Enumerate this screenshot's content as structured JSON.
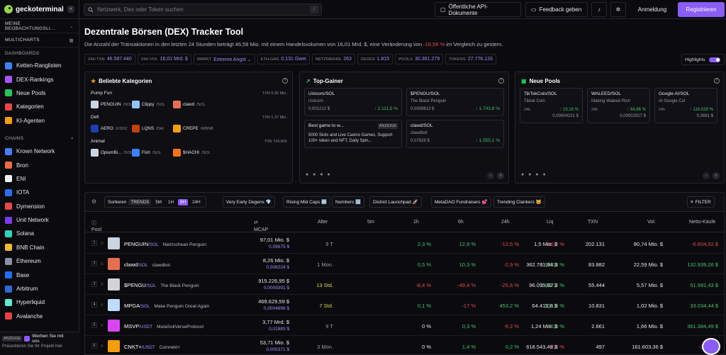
{
  "header": {
    "logo_text": "geckoterminal",
    "search_placeholder": "Netzwerk, Dex oder Token suchen",
    "search_shortcut": "/",
    "api_docs": "Öffentliche API-Dokumente",
    "feedback": "Feedback geben",
    "login": "Anmeldung",
    "register": "Registrieren"
  },
  "sidebar": {
    "watchlist": "MEINE BEOBACHTUNGSLI...",
    "multicharts": "MULTICHARTS",
    "dashboards_head": "DASHBOARDS",
    "dashboards": [
      {
        "label": "Ketten-Ranglisten",
        "color": "#3b82f6"
      },
      {
        "label": "DEX-Rankings",
        "color": "#a855f7"
      },
      {
        "label": "Neue Pools",
        "color": "#22c55e"
      },
      {
        "label": "Kategorien",
        "color": "#ef4444"
      },
      {
        "label": "KI-Agenten",
        "color": "#f59e0b"
      }
    ],
    "chains_head": "CHAINS",
    "chains": [
      {
        "label": "Krown Network",
        "color": "#4a7bff"
      },
      {
        "label": "Bron",
        "color": "#ef6c3a"
      },
      {
        "label": "ENI",
        "color": "#f1f1f1"
      },
      {
        "label": "IOTA",
        "color": "#2a6ef0"
      },
      {
        "label": "Dymension",
        "color": "#e5484d"
      },
      {
        "label": "Unit Network",
        "color": "#7c3aed"
      },
      {
        "label": "Solana",
        "color": "#2dd4bf"
      },
      {
        "label": "BNB Chain",
        "color": "#f3ba2f"
      },
      {
        "label": "Ethereum",
        "color": "#8b8fa8"
      },
      {
        "label": "Base",
        "color": "#1f6fff"
      },
      {
        "label": "Arbitrum",
        "color": "#2d6ad6"
      },
      {
        "label": "Hyperliquid",
        "color": "#5eead4"
      },
      {
        "label": "Avalanche",
        "color": "#e84142"
      }
    ],
    "ad_tag": "ANZEIGE",
    "ad_text": "Werben Sie mit uns",
    "ad_sub": "Präsentieren Sie Ihr Projekt hier"
  },
  "page": {
    "title": "Dezentrale Börsen (DEX) Tracker Tool",
    "subtitle_a": "Die Anzahl der Transaktionen in den letzten 24 Stunden beträgt 46,59 Mio. mit einem Handelsvolumen von 16,01 Mrd. $, eine Veränderung von",
    "subtitle_change": "-16,56 %",
    "subtitle_b": "im Vergleich zu gestern.",
    "highlights": "Highlights"
  },
  "stats": [
    {
      "label": "24H TXN",
      "value": "46.587.440"
    },
    {
      "label": "24H VOL",
      "value": "16,01 Mrd. $"
    },
    {
      "label": "MARKT",
      "value": "Extreme Angst ⌄"
    },
    {
      "label": "ETH-GAS",
      "value": "0,131 Gwei"
    },
    {
      "label": "NETZWERKE",
      "value": "263"
    },
    {
      "label": "DEXES",
      "value": "1.815"
    },
    {
      "label": "POOLS",
      "value": "30.361.279"
    },
    {
      "label": "TOKENS",
      "value": "27.776.133"
    }
  ],
  "categories_card": {
    "title": "Beliebte Kategorien",
    "groups": [
      {
        "name": "Pump Fun",
        "txn": "TXN 6,05 Mio.",
        "items": [
          {
            "name": "PENGUIN",
            "sym": "/SOL",
            "color": "#cbd5e1"
          },
          {
            "name": "Clippy",
            "sym": "/SOL",
            "color": "#93c5fd"
          },
          {
            "name": "clawd",
            "sym": "/SOL",
            "color": "#e76f51"
          }
        ]
      },
      {
        "name": "Defi",
        "txn": "TXN 1,37 Mio.",
        "items": [
          {
            "name": "AERO",
            "sym": "/USDC",
            "color": "#1e40af"
          },
          {
            "name": "LQNS",
            "sym": "/DAI",
            "color": "#c2410c"
          },
          {
            "name": "CREPE",
            "sym": "/WBNB",
            "color": "#f59e0b"
          }
        ]
      },
      {
        "name": "Animal",
        "txn": "TXN 734.805",
        "items": [
          {
            "name": "OpiumBi...",
            "sym": "/SOL",
            "color": "#cbd5e1"
          },
          {
            "name": "Fish",
            "sym": "/SOL",
            "color": "#3b82f6"
          },
          {
            "name": "$HACHI",
            "sym": "/SOL",
            "color": "#f97316"
          }
        ]
      }
    ]
  },
  "gainers_card": {
    "title": "Top-Gainer",
    "items": [
      {
        "pair": "Unicorn/SOL",
        "name": "Unicorn",
        "price": "0,001212 $",
        "change": "↑ 2.111,5 %"
      },
      {
        "pair": "$PENGU/SOL",
        "name": "The Black Penguin",
        "price": "0,0009813 $",
        "change": "↑ 1.743,8 %"
      },
      {
        "pair": "Best game to w...",
        "tag": "ANZEIGE",
        "desc": "5000 Slots and Live Casino Games, Support 100+ token and NFT, Daily Spin..."
      },
      {
        "pair": "clawd/SOL",
        "name": "clawdbot",
        "price": "0,07828 $",
        "change": "↑ 1.555,1 %"
      }
    ]
  },
  "pools_card": {
    "title": "Neue Pools",
    "items": [
      {
        "pair": "TikTokCoin/SOL",
        "name": "Tiktok Coin",
        "age": "24h",
        "change": "↑ 19,16 %",
        "price": "0,00004221 $"
      },
      {
        "pair": "WALEED/SOL",
        "name": "Making Waleed Rich",
        "age": "24h",
        "change": "↑ 84,86 %",
        "price": "0,00002927 $"
      },
      {
        "pair": "Google AI/SOL",
        "name": "AI Google Coi",
        "age": "24h",
        "change": "↑ 116.029 %",
        "price": "0,3661 $"
      }
    ]
  },
  "filters": {
    "sort": "Sortieren",
    "trends": "TRENDS",
    "tf": [
      "5M",
      "1H",
      "6H",
      "24H"
    ],
    "pills": [
      "Very Early Degens 💎",
      "Rising Mid Caps 🆙",
      "Numbers 🔢",
      "District Launchpad 🚀",
      "MetaDAO Fundraisers 💕",
      "Trending Clankers 🐱"
    ],
    "filter": "FILTER"
  },
  "table": {
    "headers": {
      "pool": "Pool",
      "mcap": "MCAP",
      "age": "Alter",
      "m5": "5m",
      "h1": "1h",
      "h6": "6h",
      "h24": "24h",
      "liq": "Liq",
      "txn": "TXN",
      "vol": "Vol.",
      "net": "Netto-Käufe"
    },
    "rows": [
      {
        "rank": "1",
        "sym": "PENGUIN",
        "quote": "/SOL",
        "name": "Nietzschean Penguin",
        "mcap": "97,01 Mio. $",
        "price": "0,09675 $",
        "age": "9 T",
        "m5": "2,3 %",
        "h1": "12,9 %",
        "h6": "-12,5 %",
        "h24": "-26,2 %",
        "liq": "1,5 Mio. $",
        "txn": "202.131",
        "vol": "80,74 Mio. $",
        "net": "-6.604,32 $",
        "color": "#cbd5e1"
      },
      {
        "rank": "2",
        "sym": "clawd",
        "quote": "/SOL",
        "name": "clawdbot",
        "mcap": "8,26 Mio. $",
        "price": "0,008224 $",
        "age": "1 Mon.",
        "m5": "0,5 %",
        "h1": "10,3 %",
        "h6": "-2,9 %",
        "h24": "1.933,3 %",
        "liq": "362.781,94 $",
        "txn": "83.882",
        "vol": "22,59 Mio. $",
        "net": "132.939,26 $",
        "color": "#e76f51"
      },
      {
        "rank": "3",
        "sym": "$PENGU",
        "quote": "/SOL",
        "name": "The Black Penguin",
        "mcap": "915.226,95 $",
        "price": "0,0009391 $",
        "age": "13 Std.",
        "m5": "-8,4 %",
        "h1": "-49,4 %",
        "h6": "-25,6 %",
        "h24": "1.637,2 %",
        "liq": "96.095,82 $",
        "txn": "55.444",
        "vol": "5,57 Mio. $",
        "net": "51.991,43 $",
        "color": "#d4d4d8"
      },
      {
        "rank": "4",
        "sym": "MPGA",
        "quote": "/SOL",
        "name": "Make Penguin Great Again",
        "mcap": "469.629,59 $",
        "price": "0,0004696 $",
        "age": "7 Std.",
        "m5": "0,1 %",
        "h1": "-17 %",
        "h6": "453,2 %",
        "h24": "531,6 %",
        "liq": "64.412,8 $",
        "txn": "10.831",
        "vol": "1,02 Mio. $",
        "net": "33.034,44 $",
        "color": "#bfdbfe"
      },
      {
        "rank": "5",
        "sym": "MSVP",
        "quote": "/USDT",
        "name": "MetaSoilVerseProtocol",
        "mcap": "3,77 Mrd. $",
        "price": "0,01883 $",
        "age": "9 T",
        "m5": "0 %",
        "h1": "0,3 %",
        "h6": "-9,2 %",
        "h24": "76,6 %",
        "liq": "1,24 Mio. $",
        "txn": "2.661",
        "vol": "1,66 Mio. $",
        "net": "361.384,49 $",
        "color": "#d946ef"
      },
      {
        "rank": "6",
        "sym": "CNKT+",
        "quote": "/USDT",
        "name": "Coinnekt+",
        "mcap": "53,71 Mio. $",
        "price": "0,005371 $",
        "age": "3 Mon.",
        "m5": "0 %",
        "h1": "1,4 %",
        "h6": "0,2 %",
        "h24": "-2,6 %",
        "liq": "618.543,48 $",
        "txn": "497",
        "vol": "161.603,36 $",
        "net": "-3.622,7",
        "color": "#f59e0b"
      }
    ]
  }
}
